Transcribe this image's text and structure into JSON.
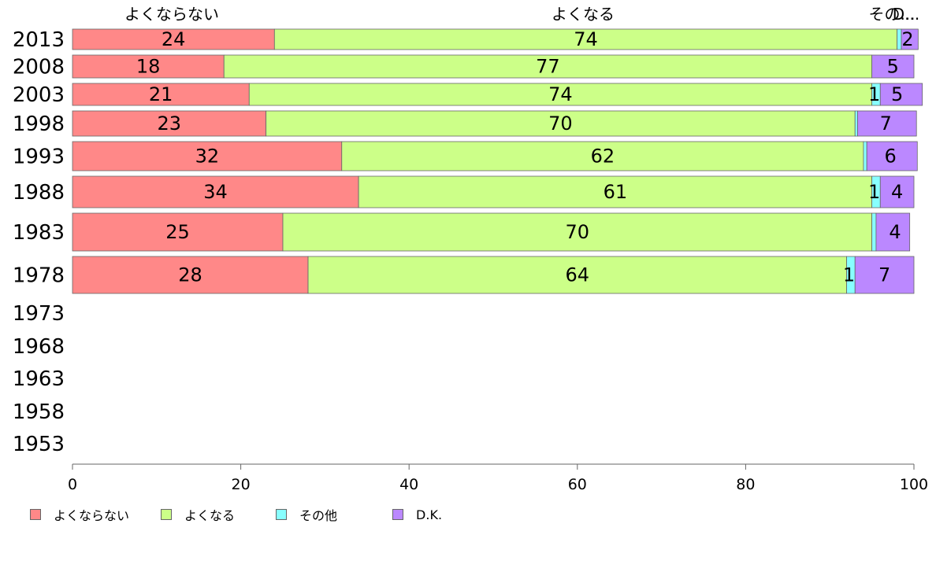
{
  "chart_data": {
    "type": "bar",
    "orientation": "horizontal",
    "stacked": true,
    "categories": [
      "2013",
      "2008",
      "2003",
      "1998",
      "1993",
      "1988",
      "1983",
      "1978",
      "1973",
      "1968",
      "1963",
      "1958",
      "1953"
    ],
    "series": [
      {
        "name": "よくならない",
        "color": "#ff8888",
        "values": [
          24,
          18,
          21,
          23,
          32,
          34,
          25,
          28,
          null,
          null,
          null,
          null,
          null
        ]
      },
      {
        "name": "よくなる",
        "color": "#ccff88",
        "values": [
          74,
          77,
          74,
          70,
          62,
          61,
          70,
          64,
          null,
          null,
          null,
          null,
          null
        ]
      },
      {
        "name": "その他",
        "color": "#88ffff",
        "values": [
          0.5,
          0,
          1,
          0.3,
          0.4,
          1,
          0.5,
          1,
          null,
          null,
          null,
          null,
          null
        ]
      },
      {
        "name": "D.K.",
        "color": "#bb88ff",
        "values": [
          2,
          5,
          5,
          7,
          6,
          4,
          4,
          7,
          null,
          null,
          null,
          null,
          null
        ]
      }
    ],
    "data_labels": [
      [
        "24",
        "74",
        "",
        "2"
      ],
      [
        "18",
        "77",
        "",
        "5"
      ],
      [
        "21",
        "74",
        "1",
        "5"
      ],
      [
        "23",
        "70",
        "",
        "7"
      ],
      [
        "32",
        "62",
        "",
        "6"
      ],
      [
        "34",
        "61",
        "1",
        "4"
      ],
      [
        "25",
        "70",
        "",
        "4"
      ],
      [
        "28",
        "64",
        "1",
        "7"
      ]
    ],
    "column_headers": [
      "よくならない",
      "よくなる",
      "その...",
      "D..."
    ],
    "xlim": [
      0,
      100
    ],
    "xticks": [
      "0",
      "20",
      "40",
      "60",
      "80",
      "100"
    ],
    "legend": {
      "position": "bottom-left",
      "entries": [
        "よくならない",
        "よくなる",
        "その他",
        "D.K."
      ]
    },
    "grid": false
  }
}
